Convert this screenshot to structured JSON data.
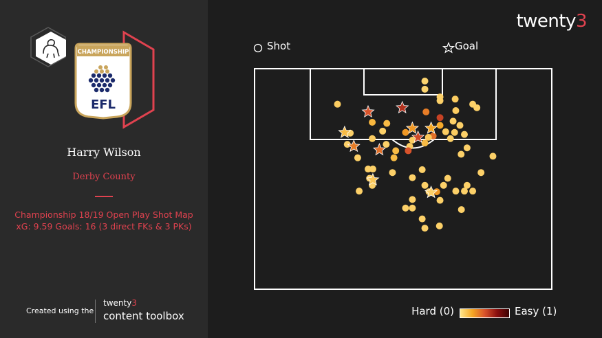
{
  "header": {
    "brand_prefix": "twenty",
    "brand_suffix": "3"
  },
  "profile": {
    "player_name": "Harry Wilson",
    "team_name": "Derby County",
    "subtitle": "Championship 18/19 Open Play Shot Map",
    "stats_line": "xG: 9.59 Goals: 16 (3 direct FKs & 3 PKs)",
    "badge_text": "CHAMPIONSHIP",
    "league_text": "EFL",
    "club_crest_icon": "ram-icon"
  },
  "footer": {
    "created_text": "Created using the",
    "toolbox_brand_prefix": "twenty",
    "toolbox_brand_suffix": "3",
    "toolbox_name": "content toolbox"
  },
  "legend": {
    "shot_label": "Shot",
    "goal_label": "Goal",
    "scale_hard": "Hard (0)",
    "scale_easy": "Easy (1)"
  },
  "colors": {
    "accent": "#e0424f",
    "background": "#1d1d1d",
    "panel": "#2a2a2a",
    "low_xg": "#ffe58a",
    "high_xg": "#8b0f0f"
  },
  "chart_data": {
    "type": "scatter",
    "title": "Championship 18/19 Open Play Shot Map",
    "x_axis": "pitch width across the penalty area (0 = left edge of shown area, 100 = right edge)",
    "y_axis": "distance from goal line (0 = goal line, 100 = bottom of shown area)",
    "color_scale": {
      "min": 0,
      "max": 1,
      "min_label": "Hard (0)",
      "max_label": "Easy (1)"
    },
    "shots": [
      {
        "x": 57.3,
        "y": 5.6,
        "xg": 0.08
      },
      {
        "x": 57.3,
        "y": 9.3,
        "xg": 0.08
      },
      {
        "x": 62.4,
        "y": 12.8,
        "xg": 0.1
      },
      {
        "x": 62.4,
        "y": 14.5,
        "xg": 0.1
      },
      {
        "x": 27.9,
        "y": 16.1,
        "xg": 0.12
      },
      {
        "x": 67.5,
        "y": 13.8,
        "xg": 0.12
      },
      {
        "x": 73.4,
        "y": 16.1,
        "xg": 0.1
      },
      {
        "x": 74.8,
        "y": 17.7,
        "xg": 0.1
      },
      {
        "x": 57.7,
        "y": 19.6,
        "xg": 0.45
      },
      {
        "x": 62.4,
        "y": 22.2,
        "xg": 0.7
      },
      {
        "x": 67.7,
        "y": 19.0,
        "xg": 0.12
      },
      {
        "x": 39.6,
        "y": 24.3,
        "xg": 0.22
      },
      {
        "x": 44.5,
        "y": 24.8,
        "xg": 0.2
      },
      {
        "x": 62.4,
        "y": 25.7,
        "xg": 0.28
      },
      {
        "x": 66.8,
        "y": 23.8,
        "xg": 0.1
      },
      {
        "x": 69.1,
        "y": 25.7,
        "xg": 0.1
      },
      {
        "x": 43.1,
        "y": 28.3,
        "xg": 0.1
      },
      {
        "x": 64.3,
        "y": 28.6,
        "xg": 0.12
      },
      {
        "x": 67.3,
        "y": 28.9,
        "xg": 0.12
      },
      {
        "x": 32.2,
        "y": 29.2,
        "xg": 0.1
      },
      {
        "x": 50.8,
        "y": 28.9,
        "xg": 0.35
      },
      {
        "x": 60.1,
        "y": 30.5,
        "xg": 0.5
      },
      {
        "x": 39.6,
        "y": 31.7,
        "xg": 0.12
      },
      {
        "x": 53.1,
        "y": 32.4,
        "xg": 0.12
      },
      {
        "x": 58.5,
        "y": 31.1,
        "xg": 0.14
      },
      {
        "x": 70.6,
        "y": 29.8,
        "xg": 0.1
      },
      {
        "x": 65.9,
        "y": 31.7,
        "xg": 0.1
      },
      {
        "x": 31.2,
        "y": 34.3,
        "xg": 0.1
      },
      {
        "x": 44.3,
        "y": 34.3,
        "xg": 0.1
      },
      {
        "x": 52.2,
        "y": 35.2,
        "xg": 0.12
      },
      {
        "x": 57.3,
        "y": 33.7,
        "xg": 0.2
      },
      {
        "x": 71.5,
        "y": 35.9,
        "xg": 0.1
      },
      {
        "x": 47.5,
        "y": 37.2,
        "xg": 0.2
      },
      {
        "x": 51.7,
        "y": 37.2,
        "xg": 0.6
      },
      {
        "x": 46.9,
        "y": 40.4,
        "xg": 0.2
      },
      {
        "x": 69.5,
        "y": 38.8,
        "xg": 0.1
      },
      {
        "x": 34.7,
        "y": 40.4,
        "xg": 0.1
      },
      {
        "x": 80.2,
        "y": 39.7,
        "xg": 0.1
      },
      {
        "x": 38.2,
        "y": 45.5,
        "xg": 0.1
      },
      {
        "x": 39.8,
        "y": 45.5,
        "xg": 0.1
      },
      {
        "x": 56.4,
        "y": 45.8,
        "xg": 0.1
      },
      {
        "x": 46.4,
        "y": 47.1,
        "xg": 0.1
      },
      {
        "x": 76.2,
        "y": 47.1,
        "xg": 0.1
      },
      {
        "x": 38.7,
        "y": 49.7,
        "xg": 0.1
      },
      {
        "x": 53.1,
        "y": 49.4,
        "xg": 0.1
      },
      {
        "x": 65.0,
        "y": 49.7,
        "xg": 0.1
      },
      {
        "x": 39.6,
        "y": 52.9,
        "xg": 0.1
      },
      {
        "x": 57.3,
        "y": 52.9,
        "xg": 0.1
      },
      {
        "x": 63.6,
        "y": 52.9,
        "xg": 0.1
      },
      {
        "x": 71.5,
        "y": 52.9,
        "xg": 0.1
      },
      {
        "x": 35.2,
        "y": 55.5,
        "xg": 0.1
      },
      {
        "x": 58.7,
        "y": 55.8,
        "xg": 0.1
      },
      {
        "x": 61.3,
        "y": 55.8,
        "xg": 0.35
      },
      {
        "x": 67.7,
        "y": 55.5,
        "xg": 0.1
      },
      {
        "x": 70.6,
        "y": 55.5,
        "xg": 0.1
      },
      {
        "x": 73.4,
        "y": 55.5,
        "xg": 0.1
      },
      {
        "x": 53.1,
        "y": 59.3,
        "xg": 0.1
      },
      {
        "x": 62.4,
        "y": 59.7,
        "xg": 0.1
      },
      {
        "x": 50.8,
        "y": 63.2,
        "xg": 0.1
      },
      {
        "x": 53.1,
        "y": 63.2,
        "xg": 0.1
      },
      {
        "x": 69.6,
        "y": 63.9,
        "xg": 0.1
      },
      {
        "x": 56.4,
        "y": 68.1,
        "xg": 0.1
      },
      {
        "x": 57.3,
        "y": 72.3,
        "xg": 0.1
      },
      {
        "x": 62.2,
        "y": 71.3,
        "xg": 0.1
      }
    ],
    "goals": [
      {
        "x": 49.7,
        "y": 17.7,
        "xg": 0.8
      },
      {
        "x": 38.2,
        "y": 19.6,
        "xg": 0.6
      },
      {
        "x": 30.3,
        "y": 28.9,
        "xg": 0.2
      },
      {
        "x": 53.1,
        "y": 27.0,
        "xg": 0.35
      },
      {
        "x": 59.4,
        "y": 27.0,
        "xg": 0.3
      },
      {
        "x": 55.0,
        "y": 31.1,
        "xg": 0.65
      },
      {
        "x": 33.4,
        "y": 35.2,
        "xg": 0.45
      },
      {
        "x": 42.0,
        "y": 36.8,
        "xg": 0.5
      },
      {
        "x": 39.8,
        "y": 50.4,
        "xg": 0.15
      },
      {
        "x": 59.4,
        "y": 56.1,
        "xg": 0.1
      }
    ]
  }
}
